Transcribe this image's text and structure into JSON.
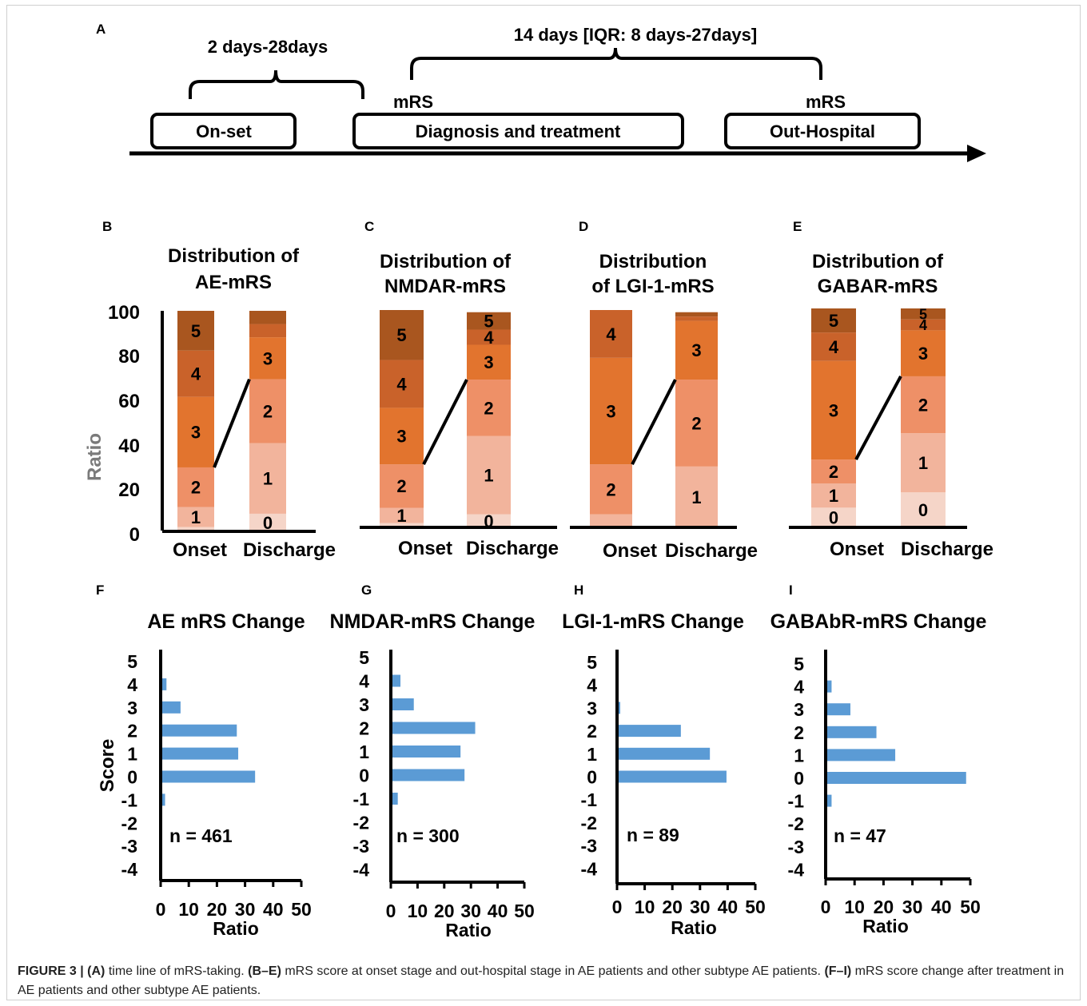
{
  "panel_A": {
    "label": "A",
    "top_interval": "14 days [IQR: 8 days-27days]",
    "left_interval": "2 days-28days",
    "mrs_left": "mRS",
    "mrs_right": "mRS",
    "boxes": [
      "On-set",
      "Diagnosis and treatment",
      "Out-Hospital"
    ]
  },
  "dist_axis": {
    "ylabel": "Ratio",
    "ticks": [
      "100",
      "80",
      "60",
      "40",
      "20",
      "0"
    ]
  },
  "change_axis": {
    "ylabel": "Score",
    "xlabel": "Ratio",
    "yticks": [
      "5",
      "4",
      "3",
      "2",
      "1",
      "0",
      "-1",
      "-2",
      "-3",
      "-4"
    ],
    "xticks": [
      "0",
      "10",
      "20",
      "30",
      "40",
      "50"
    ]
  },
  "colors": {
    "0": "#f5d5c8",
    "1": "#f2b49c",
    "2": "#ee9067",
    "3": "#e2742e",
    "4": "#c9622a",
    "5": "#a9561f",
    "change_bar": "#5b9bd5"
  },
  "chart_data": [
    {
      "type": "bar",
      "panel": "B",
      "title": [
        "Distribution of",
        "AE-mRS"
      ],
      "stacked": true,
      "ylabel": "Ratio",
      "ylim": [
        0,
        100
      ],
      "categories": [
        "Onset",
        "Discharge"
      ],
      "series": [
        {
          "name": "0",
          "values": [
            2,
            8
          ]
        },
        {
          "name": "1",
          "values": [
            9,
            32
          ]
        },
        {
          "name": "2",
          "values": [
            18,
            29
          ]
        },
        {
          "name": "3",
          "values": [
            32,
            19
          ]
        },
        {
          "name": "4",
          "values": [
            21,
            6
          ]
        },
        {
          "name": "5",
          "values": [
            18,
            6
          ]
        }
      ],
      "segment_labels": {
        "Onset": [
          "1",
          "2",
          "3",
          "4",
          "5"
        ],
        "Discharge": [
          "0",
          "1",
          "2",
          "3"
        ]
      }
    },
    {
      "type": "bar",
      "panel": "C",
      "title": [
        "Distribution of",
        "NMDAR-mRS"
      ],
      "stacked": true,
      "ylim": [
        0,
        100
      ],
      "categories": [
        "Onset",
        "Discharge"
      ],
      "series": [
        {
          "name": "0",
          "values": [
            2,
            6
          ]
        },
        {
          "name": "1",
          "values": [
            7,
            36
          ]
        },
        {
          "name": "2",
          "values": [
            20,
            26
          ]
        },
        {
          "name": "3",
          "values": [
            26,
            16
          ]
        },
        {
          "name": "4",
          "values": [
            22,
            7
          ]
        },
        {
          "name": "5",
          "values": [
            23,
            8
          ]
        }
      ],
      "segment_labels": {
        "Onset": [
          "1",
          "2",
          "3",
          "4",
          "5"
        ],
        "Discharge": [
          "0",
          "1",
          "2",
          "3",
          "4",
          "5"
        ]
      }
    },
    {
      "type": "bar",
      "panel": "D",
      "title": [
        "Distribution",
        "of LGI-1-mRS"
      ],
      "stacked": true,
      "ylim": [
        0,
        100
      ],
      "categories": [
        "Onset",
        "Discharge"
      ],
      "series": [
        {
          "name": "0",
          "values": [
            0,
            0
          ]
        },
        {
          "name": "1",
          "values": [
            6,
            28
          ]
        },
        {
          "name": "2",
          "values": [
            23,
            40
          ]
        },
        {
          "name": "3",
          "values": [
            49,
            27
          ]
        },
        {
          "name": "4",
          "values": [
            22,
            2
          ]
        },
        {
          "name": "5",
          "values": [
            0,
            2
          ]
        }
      ],
      "segment_labels": {
        "Onset": [
          "2",
          "3",
          "4"
        ],
        "Discharge": [
          "1",
          "2",
          "3"
        ]
      }
    },
    {
      "type": "bar",
      "panel": "E",
      "title": [
        "Distribution of",
        "GABAR-mRS"
      ],
      "stacked": true,
      "ylim": [
        0,
        100
      ],
      "categories": [
        "Onset",
        "Discharge"
      ],
      "series": [
        {
          "name": "0",
          "values": [
            9,
            16
          ]
        },
        {
          "name": "1",
          "values": [
            11,
            27
          ]
        },
        {
          "name": "2",
          "values": [
            11,
            26
          ]
        },
        {
          "name": "3",
          "values": [
            45,
            21
          ]
        },
        {
          "name": "4",
          "values": [
            13,
            5
          ]
        },
        {
          "name": "5",
          "values": [
            11,
            5
          ]
        }
      ],
      "segment_labels": {
        "Onset": [
          "0",
          "1",
          "2",
          "3",
          "4",
          "5"
        ],
        "Discharge": [
          "0",
          "1",
          "2",
          "3",
          "4",
          "5"
        ]
      }
    },
    {
      "type": "bar",
      "orientation": "horizontal",
      "panel": "F",
      "title": "AE mRS Change",
      "xlabel": "Ratio",
      "ylabel": "Score",
      "xlim": [
        0,
        50
      ],
      "categories": [
        "4",
        "3",
        "2",
        "1",
        "0",
        "-1"
      ],
      "values": [
        1.5,
        6.5,
        26.5,
        27,
        33,
        1
      ],
      "annotation": "n = 461"
    },
    {
      "type": "bar",
      "orientation": "horizontal",
      "panel": "G",
      "title": "NMDAR-mRS Change",
      "xlabel": "Ratio",
      "xlim": [
        0,
        50
      ],
      "categories": [
        "4",
        "3",
        "2",
        "1",
        "0",
        "-1"
      ],
      "values": [
        3,
        8,
        31,
        25.5,
        27,
        2
      ],
      "annotation": "n = 300"
    },
    {
      "type": "bar",
      "orientation": "horizontal",
      "panel": "H",
      "title": "LGI-1-mRS Change",
      "xlabel": "Ratio",
      "xlim": [
        0,
        50
      ],
      "categories": [
        "3",
        "2",
        "1",
        "0"
      ],
      "values": [
        0.5,
        22.5,
        33,
        39
      ],
      "annotation": "n = 89"
    },
    {
      "type": "bar",
      "orientation": "horizontal",
      "panel": "I",
      "title": "GABAbR-mRS Change",
      "xlabel": "Ratio",
      "xlim": [
        0,
        50
      ],
      "categories": [
        "4",
        "3",
        "2",
        "1",
        "0",
        "-1"
      ],
      "values": [
        1.5,
        8,
        17,
        23.5,
        48,
        1.5
      ],
      "annotation": "n = 47"
    }
  ],
  "caption": {
    "figure_label": "FIGURE 3 |",
    "a_label": "(A)",
    "a_text": " time line of mRS-taking. ",
    "be_label": "(B–E)",
    "be_text": " mRS score at onset stage and out-hospital stage in AE patients and other subtype AE patients. ",
    "fi_label": "(F–I)",
    "fi_text": " mRS score change after treatment in AE patients and other subtype AE patients."
  }
}
